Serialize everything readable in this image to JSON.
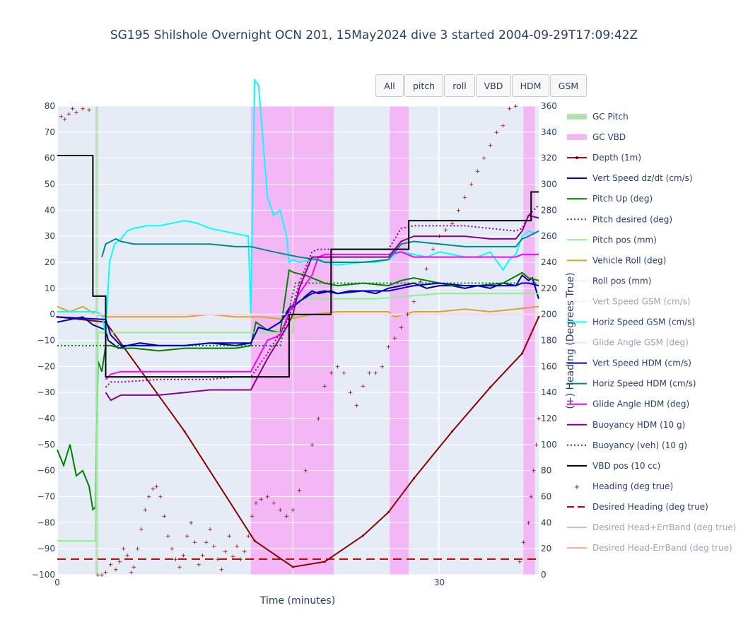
{
  "title": "SG195 Shilshole Overnight OCN 201, 15May2024 dive 3 started 2004-09-29T17:09:42Z",
  "buttons": [
    "All",
    "pitch",
    "roll",
    "VBD",
    "HDM",
    "GSM"
  ],
  "chart_data": {
    "type": "line",
    "xlabel": "Time (minutes)",
    "ylabel": "",
    "y2label": "(+) Heading (Degrees True)",
    "xlim": [
      0,
      37.8
    ],
    "ylim": [
      -100,
      80
    ],
    "y2lim": [
      0,
      360
    ],
    "x_ticks": [
      0,
      30
    ],
    "y_ticks": [
      -100,
      -90,
      -80,
      -70,
      -60,
      -50,
      -40,
      -30,
      -20,
      -10,
      0,
      10,
      20,
      30,
      40,
      50,
      60,
      70,
      80
    ],
    "y2_ticks": [
      0,
      20,
      40,
      60,
      80,
      100,
      120,
      140,
      160,
      180,
      200,
      220,
      240,
      260,
      280,
      300,
      320,
      340,
      360
    ],
    "grid": true,
    "legend_position": "right",
    "gc_pitch_intervals": [
      [
        3.0,
        3.2
      ]
    ],
    "gc_vbd_intervals": [
      [
        15.2,
        21.7
      ],
      [
        26.1,
        27.6
      ],
      [
        36.6,
        37.5
      ]
    ],
    "series": [
      {
        "name": "GC Pitch",
        "color": "#b4e0b0",
        "style": "band"
      },
      {
        "name": "GC VBD",
        "color": "#f4b4f6",
        "style": "band"
      },
      {
        "name": "Depth (1m)",
        "color": "#8b0000",
        "style": "line-marker",
        "x": [
          0,
          3.8,
          10,
          15.5,
          18.5,
          21,
          24,
          26,
          28,
          31,
          34,
          36.5,
          37.8
        ],
        "y": [
          -1,
          -3,
          -45,
          -87,
          -97,
          -95,
          -85,
          -76,
          -63,
          -45,
          -28,
          -15,
          -1
        ]
      },
      {
        "name": "Vert Speed dz/dt (cm/s)",
        "color": "#00008b",
        "style": "line",
        "x": [
          0,
          2,
          2.8,
          3.8,
          4,
          4.8,
          5.5,
          6.5,
          8,
          10,
          12,
          14,
          15.2,
          15.8,
          16.5,
          17.5,
          18.3,
          18.8,
          19.5,
          20,
          20.5,
          21.5,
          22,
          23,
          24,
          25,
          26,
          27,
          28,
          29,
          30,
          31,
          32,
          33,
          34,
          35,
          36,
          36.5,
          37,
          37.3,
          37.8
        ],
        "y": [
          -3,
          -1,
          -4,
          -6,
          -10,
          -13,
          -12,
          -11,
          -12,
          -12,
          -11,
          -12,
          -11,
          -5,
          -6,
          -3,
          3,
          4,
          7,
          9,
          8,
          9,
          8,
          9,
          9,
          8,
          10,
          11,
          12,
          10,
          11,
          11,
          10,
          11,
          10,
          12,
          11,
          15,
          13,
          14,
          6
        ]
      },
      {
        "name": "Pitch Up (deg)",
        "color": "#008000",
        "style": "line",
        "x": [
          0,
          0.5,
          1,
          1.5,
          2,
          2.5,
          2.8,
          3.0,
          3.2,
          3.5,
          3.8,
          4.2,
          5,
          6,
          8,
          10,
          12,
          14,
          15.2,
          15.6,
          16.5,
          17.5,
          18.2,
          18.6,
          19.5,
          20.5,
          21,
          22,
          24,
          26,
          27,
          28,
          29,
          30,
          31,
          33,
          35,
          36.5,
          37,
          37.8
        ],
        "y": [
          -52,
          -58,
          -50,
          -62,
          -60,
          -66,
          -75,
          -74,
          -18,
          -22,
          -12,
          -12,
          -13,
          -13,
          -14,
          -13,
          -13,
          -13,
          -12,
          -3,
          -6,
          -7,
          17,
          16,
          15,
          13,
          12,
          11,
          12,
          11,
          13,
          14,
          13,
          12,
          11,
          11,
          12,
          16,
          14,
          13
        ]
      },
      {
        "name": "Pitch desired (deg)",
        "color": "#008000",
        "style": "dot",
        "x": [
          0,
          15.2,
          17.5,
          18.7,
          20.5,
          21.5,
          27.6,
          37.8
        ],
        "y": [
          -12,
          -12,
          -12,
          12,
          12,
          12,
          12,
          12
        ]
      },
      {
        "name": "Pitch pos (mm)",
        "color": "#90ee90",
        "style": "line",
        "x": [
          0,
          3.0,
          3.2,
          15.2,
          18.5,
          18.7,
          25,
          30,
          37.8
        ],
        "y": [
          -87,
          -87,
          -7,
          -7,
          -7,
          6,
          6,
          8,
          8
        ]
      },
      {
        "name": "Vehicle Roll (deg)",
        "color": "#daa520",
        "style": "line",
        "x": [
          0,
          1,
          2,
          3,
          4,
          6,
          8,
          10,
          12,
          14,
          16,
          18,
          20,
          22,
          24,
          26,
          26.5,
          28,
          30,
          32,
          34,
          36,
          37.8
        ],
        "y": [
          3,
          1,
          3,
          0,
          -1,
          -1,
          -1,
          -1,
          0,
          -1,
          -1,
          -2,
          0,
          1,
          1,
          1,
          -1,
          1,
          1,
          2,
          1,
          2,
          3
        ]
      },
      {
        "name": "Roll pos (mm)",
        "color": "#f5f5dc",
        "style": "line",
        "x": [
          0,
          37.8
        ],
        "y": [
          0,
          0
        ]
      },
      {
        "name": "Vert Speed GSM (cm/s)",
        "color": "#e0f0ff",
        "style": "line",
        "x": [
          0,
          37.8
        ],
        "y": [
          0,
          0
        ]
      },
      {
        "name": "Horiz Speed GSM (cm/s)",
        "color": "#00ffff",
        "style": "line",
        "x": [
          0,
          3.0,
          3.5,
          3.8,
          4.1,
          4.5,
          5,
          5.5,
          6,
          7,
          8,
          9,
          10,
          11,
          12,
          13,
          14,
          15,
          15.2,
          15.5,
          15.8,
          16.1,
          16.5,
          17,
          17.5,
          18,
          18.2,
          18.5,
          19,
          20,
          21,
          22,
          24,
          25,
          26,
          26.5,
          27,
          28,
          29,
          30,
          31,
          32,
          33,
          34,
          35,
          35.5,
          36,
          36.5,
          37,
          37.5
        ],
        "y": [
          1,
          1,
          0,
          -8,
          20,
          27,
          29,
          32,
          33,
          34,
          34,
          35,
          36,
          35,
          33,
          32,
          31,
          30,
          0,
          90,
          88,
          70,
          45,
          38,
          40,
          30,
          20,
          21,
          20,
          21,
          20,
          19,
          20,
          20,
          21,
          23,
          24,
          23,
          22,
          24,
          23,
          22,
          22,
          24,
          17,
          21,
          23,
          30,
          32,
          31
        ]
      },
      {
        "name": "Glide Angle GSM (deg)",
        "color": "#ffd0f0",
        "style": "line",
        "x": [
          0,
          37.8
        ],
        "y": [
          0,
          0
        ]
      },
      {
        "name": "Vert Speed HDM (cm/s)",
        "color": "#0000cd",
        "style": "line",
        "x": [
          0,
          3.8,
          4.2,
          5,
          8,
          10,
          12,
          14,
          15.2,
          15.8,
          16.5,
          17.5,
          18.3,
          19,
          20,
          21,
          22,
          24,
          26,
          27,
          28,
          30,
          32,
          34,
          36,
          36.5,
          37,
          37.8
        ],
        "y": [
          -1,
          -2,
          -8,
          -12,
          -12,
          -12,
          -11,
          -11,
          -11,
          -5,
          -6,
          -3,
          2,
          5,
          8,
          9,
          8,
          9,
          9,
          10,
          11,
          12,
          11,
          11,
          11,
          12,
          12,
          11
        ]
      },
      {
        "name": "Horiz Speed HDM (cm/s)",
        "color": "#008b8b",
        "style": "line",
        "x": [
          3.5,
          3.8,
          4.2,
          4.6,
          5,
          6,
          8,
          10,
          12,
          14,
          15.2,
          17,
          19,
          20.5,
          21,
          22,
          24,
          26,
          27,
          28,
          30,
          32,
          34,
          36,
          36.5,
          37,
          37.8
        ],
        "y": [
          22,
          27,
          28,
          29,
          28,
          27,
          27,
          27,
          27,
          26,
          26,
          24,
          22,
          21,
          20,
          20,
          20,
          21,
          27,
          28,
          27,
          26,
          26,
          26,
          29,
          30,
          32
        ]
      },
      {
        "name": "Glide Angle HDM (deg)",
        "color": "#ff00ff",
        "style": "line",
        "x": [
          3.8,
          4.2,
          5,
          8,
          10,
          12,
          14,
          15.2,
          16.5,
          17.5,
          18.3,
          19,
          20,
          20.5,
          21,
          22,
          24,
          26,
          27,
          28,
          30,
          32,
          34,
          36,
          36.5,
          37.8
        ],
        "y": [
          -25,
          -23,
          -22,
          -22,
          -22,
          -22,
          -22,
          -22,
          -10,
          -8,
          2,
          8,
          15,
          22,
          23,
          23,
          23,
          23,
          24,
          22,
          22,
          22,
          22,
          22,
          23,
          23
        ]
      },
      {
        "name": "Buoyancy HDM (10 g)",
        "color": "#8b008b",
        "style": "line",
        "x": [
          3.8,
          4.2,
          5,
          6,
          8,
          10,
          12,
          14,
          15.2,
          16.5,
          18,
          18.5,
          19,
          20,
          21,
          22,
          24,
          26,
          27,
          28,
          30,
          32,
          34,
          36,
          36.5,
          37,
          37.8
        ],
        "y": [
          -30,
          -33,
          -31,
          -31,
          -31,
          -30,
          -29,
          -29,
          -29,
          -17,
          -5,
          0,
          10,
          22,
          22,
          22,
          22,
          22,
          28,
          30,
          30,
          30,
          29,
          29,
          32,
          38,
          37
        ]
      },
      {
        "name": "Buoyancy (veh) (10 g)",
        "color": "#8b008b",
        "style": "dot",
        "x": [
          3.8,
          4.2,
          5,
          8,
          10,
          12,
          14,
          15.2,
          16.5,
          18,
          18.5,
          19,
          20,
          20.5,
          21,
          22,
          24,
          26,
          27,
          28,
          30,
          32,
          34,
          36,
          36.5,
          37,
          37.8
        ],
        "y": [
          -28,
          -26,
          -26,
          -25,
          -25,
          -25,
          -24,
          -24,
          -15,
          -3,
          3,
          12,
          24,
          25,
          25,
          25,
          25,
          25,
          33,
          34,
          34,
          34,
          33,
          32,
          33,
          38,
          42
        ]
      },
      {
        "name": "VBD pos (10 cc)",
        "color": "#000000",
        "style": "step",
        "x": [
          0,
          2.8,
          2.8,
          3.8,
          3.8,
          15.2,
          15.2,
          18.2,
          18.2,
          21.5,
          21.5,
          25.8,
          25.8,
          27.6,
          27.6,
          37.2,
          37.2,
          37.8
        ],
        "y": [
          61,
          61,
          7,
          7,
          -24,
          -24,
          -24,
          -24,
          0,
          0,
          25,
          25,
          25,
          25,
          36,
          36,
          47,
          47
        ]
      },
      {
        "name": "Heading (deg true)",
        "color": "#8b0000",
        "style": "marker",
        "axis": "y2",
        "x": [
          0.3,
          0.6,
          0.9,
          1.2,
          1.5,
          2.0,
          2.5,
          3.2,
          3.5,
          3.8,
          4.2,
          4.6,
          4.9,
          5.2,
          5.5,
          5.8,
          6.0,
          6.3,
          6.6,
          6.9,
          7.2,
          7.5,
          7.8,
          8.1,
          8.4,
          8.7,
          9.0,
          9.3,
          9.6,
          9.9,
          10.2,
          10.5,
          10.8,
          11.1,
          11.4,
          11.7,
          12.0,
          12.3,
          12.6,
          12.9,
          13.2,
          13.5,
          13.8,
          14.1,
          14.4,
          14.7,
          15.0,
          15.3,
          15.6,
          16.0,
          16.5,
          17.0,
          17.5,
          18.0,
          18.5,
          19.0,
          19.5,
          20.0,
          20.5,
          21.0,
          21.5,
          22.0,
          22.5,
          23.0,
          23.5,
          24.0,
          24.5,
          25.0,
          25.5,
          26.0,
          26.5,
          27.0,
          27.5,
          28.0,
          28.5,
          29.0,
          29.5,
          30.0,
          30.5,
          31.0,
          31.5,
          32.0,
          32.5,
          33.0,
          33.5,
          34.0,
          34.5,
          35.0,
          35.5,
          36.0,
          36.3,
          36.6,
          37.0,
          37.2,
          37.4,
          37.6,
          37.8
        ],
        "y": [
          352,
          350,
          354,
          358,
          355,
          358,
          357,
          0,
          0,
          2,
          8,
          4,
          10,
          20,
          15,
          2,
          6,
          20,
          35,
          50,
          60,
          66,
          68,
          60,
          45,
          30,
          20,
          12,
          6,
          15,
          30,
          40,
          25,
          8,
          15,
          25,
          35,
          22,
          12,
          4,
          18,
          30,
          14,
          22,
          12,
          18,
          30,
          45,
          55,
          58,
          60,
          55,
          50,
          45,
          50,
          65,
          80,
          100,
          120,
          145,
          155,
          160,
          155,
          140,
          130,
          145,
          155,
          155,
          160,
          175,
          182,
          190,
          200,
          210,
          225,
          235,
          250,
          260,
          265,
          270,
          280,
          290,
          300,
          310,
          320,
          330,
          340,
          345,
          358,
          360,
          10,
          25,
          40,
          60,
          80,
          100,
          120
        ]
      },
      {
        "name": "Desired Heading (deg true)",
        "color": "#b00000",
        "style": "dash",
        "axis": "y2",
        "x": [
          0,
          37.8
        ],
        "y": [
          12,
          12
        ]
      },
      {
        "name": "Desired Head+ErrBand (deg true)",
        "color": "#e9967a",
        "style": "hidden"
      },
      {
        "name": "Desired Head-ErrBand (deg true)",
        "color": "#e9967a",
        "style": "hidden"
      }
    ]
  }
}
